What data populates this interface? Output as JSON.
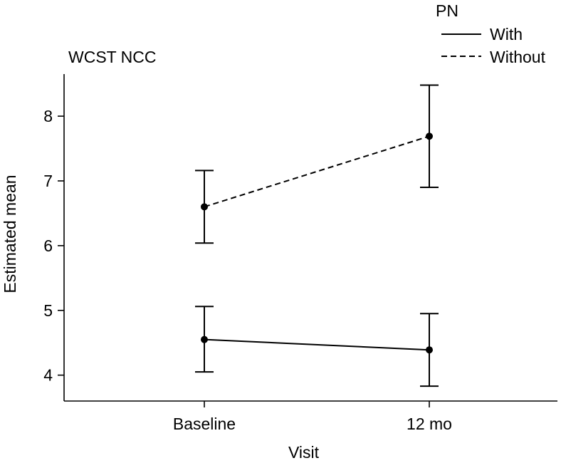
{
  "chart_data": {
    "type": "line",
    "title": "WCST NCC",
    "xlabel": "Visit",
    "ylabel": "Estimated mean",
    "categories": [
      "Baseline",
      "12 mo"
    ],
    "ylim": [
      3.6,
      8.65
    ],
    "yticks": [
      4,
      5,
      6,
      7,
      8
    ],
    "grid": false,
    "legend": {
      "title": "PN",
      "position": "top-right",
      "entries": [
        {
          "name": "With",
          "style": "solid"
        },
        {
          "name": "Without",
          "style": "dashed"
        }
      ]
    },
    "series": [
      {
        "name": "With",
        "style": "solid",
        "values": [
          4.55,
          4.39
        ],
        "error_low": [
          4.05,
          3.83
        ],
        "error_high": [
          5.06,
          4.95
        ]
      },
      {
        "name": "Without",
        "style": "dashed",
        "values": [
          6.6,
          7.69
        ],
        "error_low": [
          6.04,
          6.9
        ],
        "error_high": [
          7.16,
          8.48
        ]
      }
    ],
    "colors": {
      "line": "#000000",
      "background": "#ffffff"
    }
  }
}
